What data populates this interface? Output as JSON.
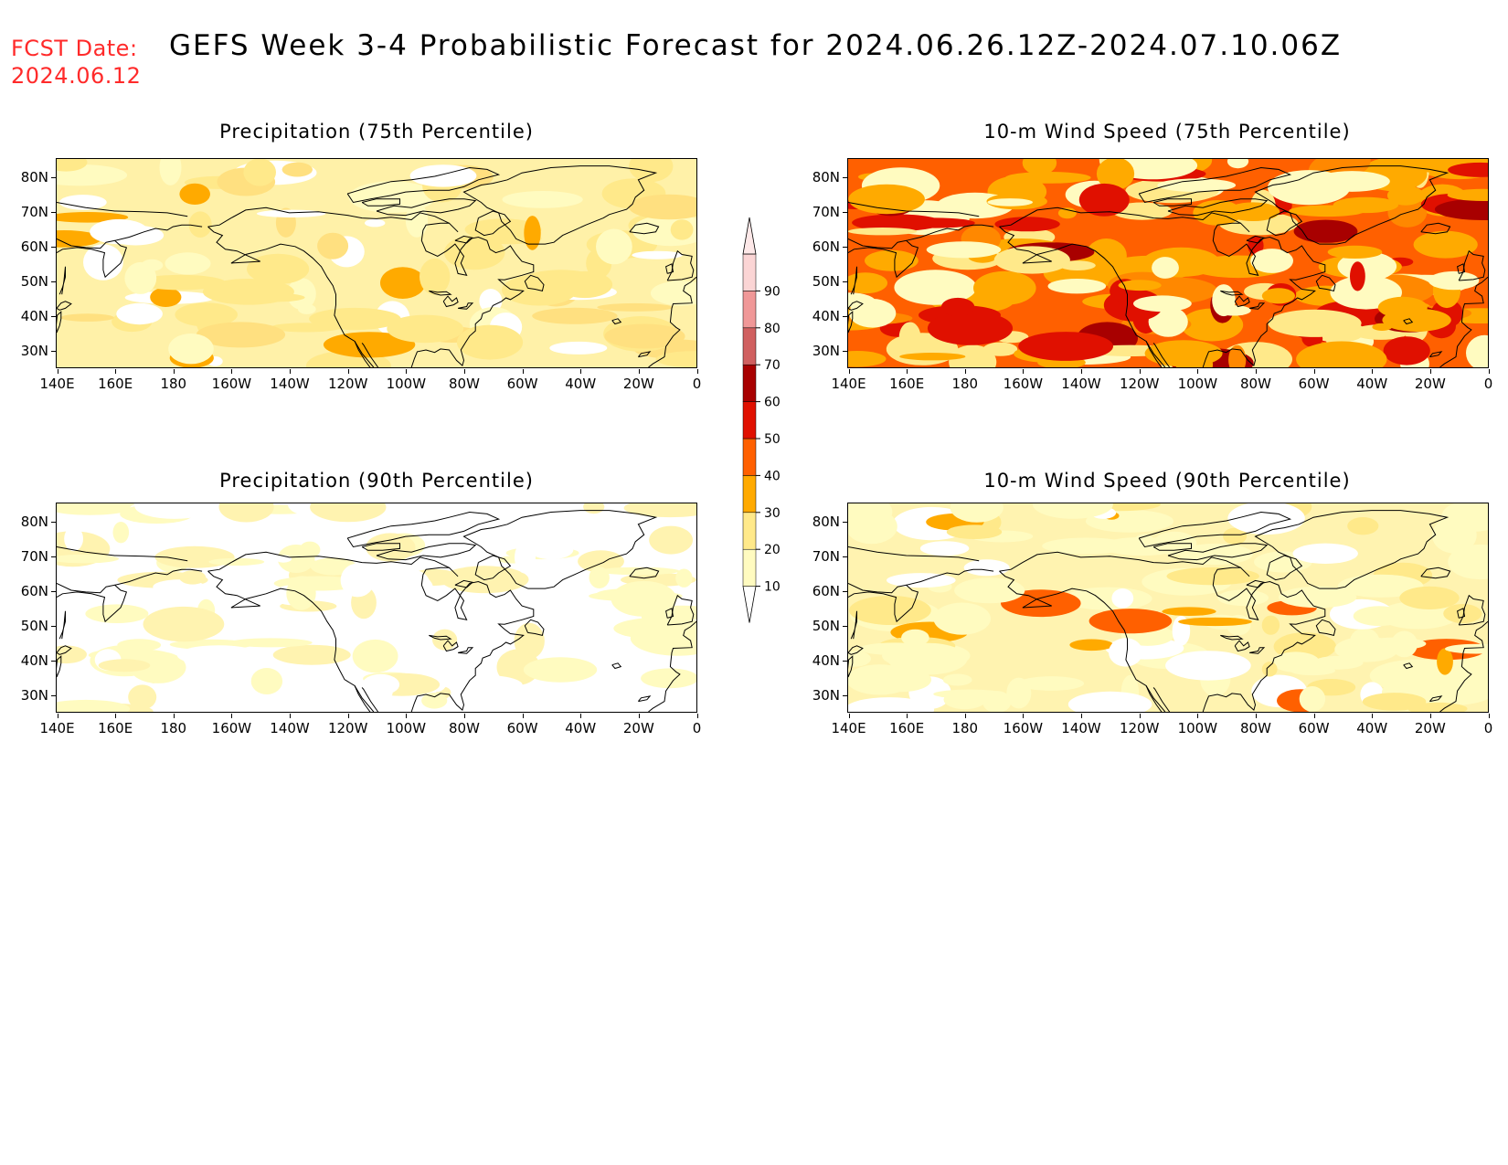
{
  "header": {
    "fcst_label": "FCST Date:",
    "fcst_date": "2024.06.12",
    "title": "GEFS Week 3-4 Probabilistic Forecast for 2024.06.26.12Z-2024.07.10.06Z"
  },
  "x_ticks": [
    "140E",
    "160E",
    "180",
    "160W",
    "140W",
    "120W",
    "100W",
    "80W",
    "60W",
    "40W",
    "20W",
    "0"
  ],
  "y_ticks": [
    "80N",
    "70N",
    "60N",
    "50N",
    "40N",
    "30N"
  ],
  "panels": [
    {
      "title": "Precipitation (75th Percentile)",
      "variable": "precipitation",
      "percentile": 75,
      "dominant_probability_range": "10-20"
    },
    {
      "title": "10-m Wind Speed (75th Percentile)",
      "variable": "wind_speed_10m",
      "percentile": 75,
      "dominant_probability_range": "30-50"
    },
    {
      "title": "Precipitation (90th Percentile)",
      "variable": "precipitation",
      "percentile": 90,
      "dominant_probability_range": "0-20"
    },
    {
      "title": "10-m Wind Speed (90th Percentile)",
      "variable": "wind_speed_10m",
      "percentile": 90,
      "dominant_probability_range": "10-30"
    }
  ],
  "colorbar": {
    "levels": [
      "10",
      "20",
      "30",
      "40",
      "50",
      "60",
      "70",
      "80",
      "90"
    ],
    "colors": [
      "#fffbc0",
      "#ffe98a",
      "#ffaa00",
      "#ff6000",
      "#e01000",
      "#a80000",
      "#d06060",
      "#f09898",
      "#fbd5d5"
    ]
  },
  "map_extent": {
    "lon_range": [
      "140E",
      "0"
    ],
    "lat_range": [
      "25N",
      "85N"
    ]
  }
}
